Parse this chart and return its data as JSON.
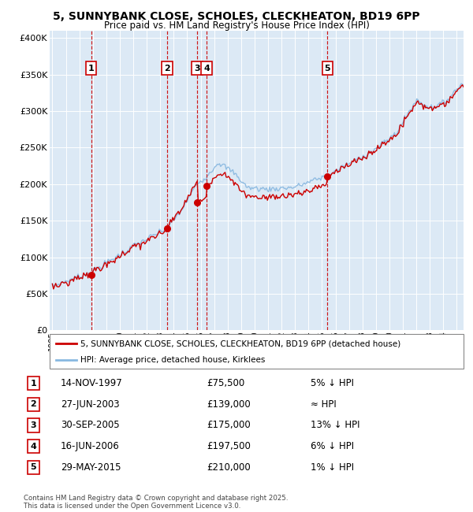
{
  "title_line1": "5, SUNNYBANK CLOSE, SCHOLES, CLECKHEATON, BD19 6PP",
  "title_line2": "Price paid vs. HM Land Registry's House Price Index (HPI)",
  "ytick_values": [
    0,
    50000,
    100000,
    150000,
    200000,
    250000,
    300000,
    350000,
    400000
  ],
  "ytick_labels": [
    "£0",
    "£50K",
    "£100K",
    "£150K",
    "£200K",
    "£250K",
    "£300K",
    "£350K",
    "£400K"
  ],
  "ylim": [
    0,
    410000
  ],
  "xlim_start": 1994.8,
  "xlim_end": 2025.5,
  "background_color": "#dce9f5",
  "grid_color": "#ffffff",
  "sale_dates": [
    1997.87,
    2003.49,
    2005.75,
    2006.46,
    2015.41
  ],
  "sale_prices": [
    75500,
    139000,
    175000,
    197500,
    210000
  ],
  "sale_labels": [
    "1",
    "2",
    "3",
    "4",
    "5"
  ],
  "red_line_color": "#cc0000",
  "blue_line_color": "#88b8e0",
  "dot_color": "#cc0000",
  "dashed_line_color": "#cc0000",
  "legend_label_red": "5, SUNNYBANK CLOSE, SCHOLES, CLECKHEATON, BD19 6PP (detached house)",
  "legend_label_blue": "HPI: Average price, detached house, Kirklees",
  "table_rows": [
    [
      "1",
      "14-NOV-1997",
      "£75,500",
      "5% ↓ HPI"
    ],
    [
      "2",
      "27-JUN-2003",
      "£139,000",
      "≈ HPI"
    ],
    [
      "3",
      "30-SEP-2005",
      "£175,000",
      "13% ↓ HPI"
    ],
    [
      "4",
      "16-JUN-2006",
      "£197,500",
      "6% ↓ HPI"
    ],
    [
      "5",
      "29-MAY-2015",
      "£210,000",
      "1% ↓ HPI"
    ]
  ],
  "footnote": "Contains HM Land Registry data © Crown copyright and database right 2025.\nThis data is licensed under the Open Government Licence v3.0."
}
